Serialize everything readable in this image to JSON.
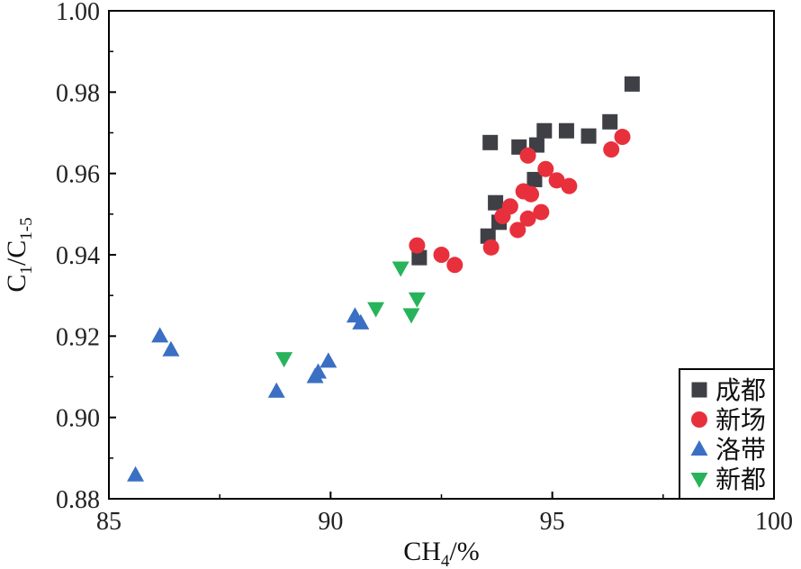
{
  "chart_data": {
    "type": "scatter",
    "title": "",
    "xlabel": {
      "main": "CH",
      "sub": "4",
      "tail": "/%"
    },
    "ylabel": {
      "a": "C",
      "a_sub": "1",
      "b": "/C",
      "b_sub": "1-5"
    },
    "xlim": [
      85,
      100
    ],
    "ylim": [
      0.88,
      1.0
    ],
    "x_ticks": [
      85,
      90,
      95,
      100
    ],
    "x_tick_labels": [
      "85",
      "90",
      "95",
      "100"
    ],
    "y_ticks": [
      0.88,
      0.9,
      0.92,
      0.94,
      0.96,
      0.98,
      1.0
    ],
    "y_tick_labels": [
      "0.88",
      "0.90",
      "0.92",
      "0.94",
      "0.96",
      "0.98",
      "1.00"
    ],
    "grid": false,
    "legend": "bottom-right",
    "series": [
      {
        "name": "成都",
        "marker": "square",
        "color": "#3f3f46",
        "points": [
          [
            93.6,
            0.9676
          ],
          [
            94.25,
            0.9665
          ],
          [
            94.65,
            0.967
          ],
          [
            94.82,
            0.9705
          ],
          [
            95.32,
            0.9705
          ],
          [
            95.82,
            0.9692
          ],
          [
            96.3,
            0.9727
          ],
          [
            96.8,
            0.982
          ],
          [
            93.72,
            0.9528
          ],
          [
            94.6,
            0.9585
          ],
          [
            93.8,
            0.948
          ],
          [
            93.55,
            0.9446
          ],
          [
            92.0,
            0.9393
          ]
        ]
      },
      {
        "name": "新场",
        "marker": "circle",
        "color": "#e8303d",
        "points": [
          [
            94.45,
            0.9644
          ],
          [
            94.85,
            0.9611
          ],
          [
            95.1,
            0.9583
          ],
          [
            95.38,
            0.9569
          ],
          [
            96.33,
            0.9659
          ],
          [
            96.58,
            0.969
          ],
          [
            94.35,
            0.9556
          ],
          [
            94.52,
            0.9549
          ],
          [
            94.05,
            0.9519
          ],
          [
            93.88,
            0.9495
          ],
          [
            94.45,
            0.9489
          ],
          [
            94.75,
            0.9505
          ],
          [
            94.22,
            0.9461
          ],
          [
            93.62,
            0.9418
          ],
          [
            91.95,
            0.9423
          ],
          [
            92.5,
            0.94
          ],
          [
            92.8,
            0.9375
          ]
        ]
      },
      {
        "name": "洛带",
        "marker": "triangle-up",
        "color": "#3b6fc4",
        "points": [
          [
            86.15,
            0.92
          ],
          [
            86.4,
            0.9166
          ],
          [
            88.78,
            0.9064
          ],
          [
            89.65,
            0.91
          ],
          [
            89.72,
            0.9111
          ],
          [
            89.95,
            0.9138
          ],
          [
            90.55,
            0.9249
          ],
          [
            90.68,
            0.9232
          ],
          [
            85.6,
            0.8858
          ]
        ]
      },
      {
        "name": "新都",
        "marker": "triangle-down",
        "color": "#27b35a",
        "points": [
          [
            88.95,
            0.9145
          ],
          [
            91.02,
            0.9268
          ],
          [
            91.58,
            0.9368
          ],
          [
            91.82,
            0.9253
          ],
          [
            91.95,
            0.9292
          ]
        ]
      }
    ]
  }
}
